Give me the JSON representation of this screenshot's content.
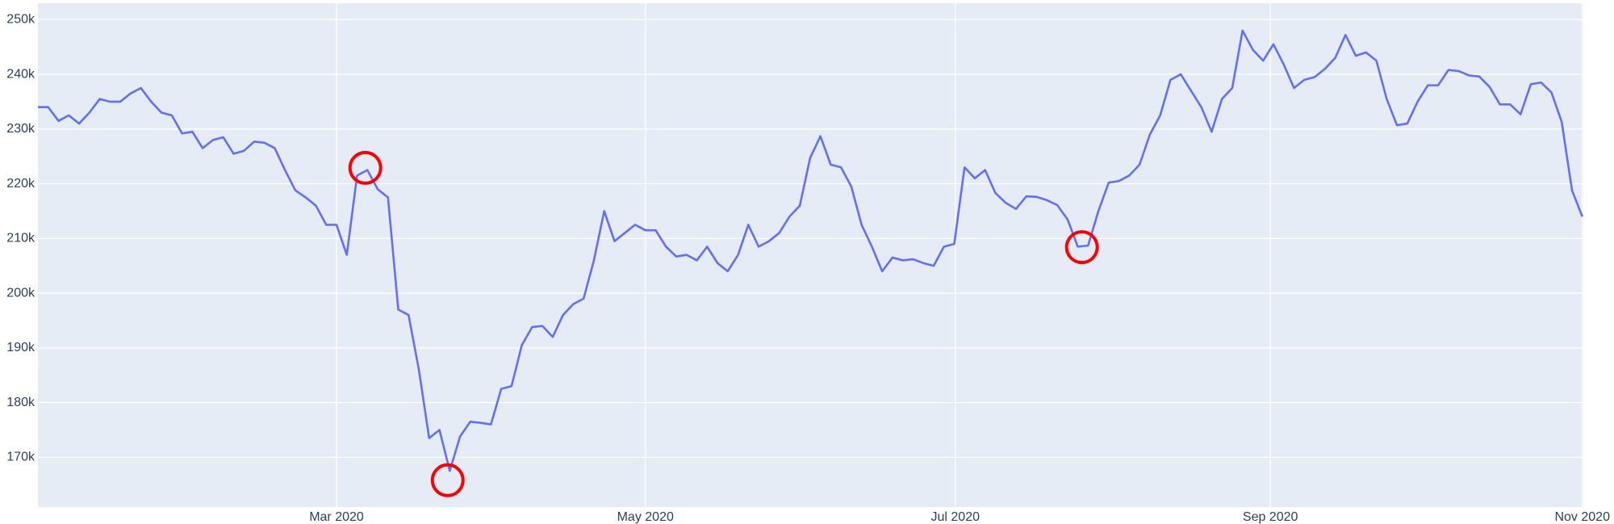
{
  "chart_data": {
    "type": "line",
    "values": [
      234000,
      234000,
      231500,
      232500,
      231000,
      233000,
      235500,
      235000,
      235000,
      236500,
      237500,
      235000,
      233000,
      232500,
      229200,
      229500,
      226500,
      228000,
      228500,
      225500,
      226000,
      227700,
      227500,
      226500,
      222500,
      218800,
      217500,
      216000,
      212500,
      212500,
      207000,
      221500,
      222500,
      219000,
      217500,
      197000,
      196000,
      186000,
      173500,
      175000,
      167500,
      173800,
      176500,
      176300,
      176000,
      182500,
      183000,
      190500,
      193800,
      194000,
      192000,
      196000,
      198000,
      199000,
      206000,
      215000,
      209500,
      211000,
      212500,
      211500,
      211500,
      208500,
      206700,
      207000,
      206000,
      208500,
      205500,
      204000,
      207000,
      212500,
      208500,
      209500,
      211000,
      214000,
      216000,
      224700,
      228700,
      223500,
      223000,
      219500,
      212500,
      208500,
      204000,
      206500,
      206000,
      206200,
      205500,
      205000,
      208500,
      209000,
      223000,
      221000,
      222500,
      218300,
      216500,
      215400,
      217700,
      217600,
      217000,
      216100,
      213500,
      208500,
      208700,
      215000,
      220200,
      220500,
      221500,
      223500,
      229000,
      232500,
      239000,
      240000,
      237000,
      234000,
      229500,
      235500,
      237500,
      248000,
      244500,
      242500,
      245500,
      241800,
      237500,
      239000,
      239500,
      241000,
      243000,
      247200,
      243400,
      244000,
      242500,
      235500,
      230700,
      231000,
      235000,
      238000,
      238000,
      240800,
      240600,
      239800,
      239600,
      237700,
      234500,
      234500,
      232700,
      238200,
      238500,
      236700,
      231300,
      218800,
      214000
    ],
    "color": "#636efa",
    "xlim": [
      0,
      150.1
    ],
    "xticks": [
      {
        "value": 29,
        "label": "Mar 2020"
      },
      {
        "value": 59,
        "label": "May 2020"
      },
      {
        "value": 89.1,
        "label": "Jul 2020"
      },
      {
        "value": 119.7,
        "label": "Sep 2020"
      },
      {
        "value": 150,
        "label": "Nov 2020"
      }
    ],
    "ylim": [
      160900,
      253000
    ],
    "yticks": [
      {
        "value": 170000,
        "label": "170k"
      },
      {
        "value": 180000,
        "label": "180k"
      },
      {
        "value": 190000,
        "label": "190k"
      },
      {
        "value": 200000,
        "label": "200k"
      },
      {
        "value": 210000,
        "label": "210k"
      },
      {
        "value": 220000,
        "label": "220k"
      },
      {
        "value": 230000,
        "label": "230k"
      },
      {
        "value": 240000,
        "label": "240k"
      },
      {
        "value": 250000,
        "label": "250k"
      }
    ],
    "grid": true,
    "highlights": {
      "x": [
        31.8,
        39.8,
        101.4
      ],
      "values": [
        222900,
        165800,
        208400
      ],
      "color": "#ff0000"
    }
  }
}
